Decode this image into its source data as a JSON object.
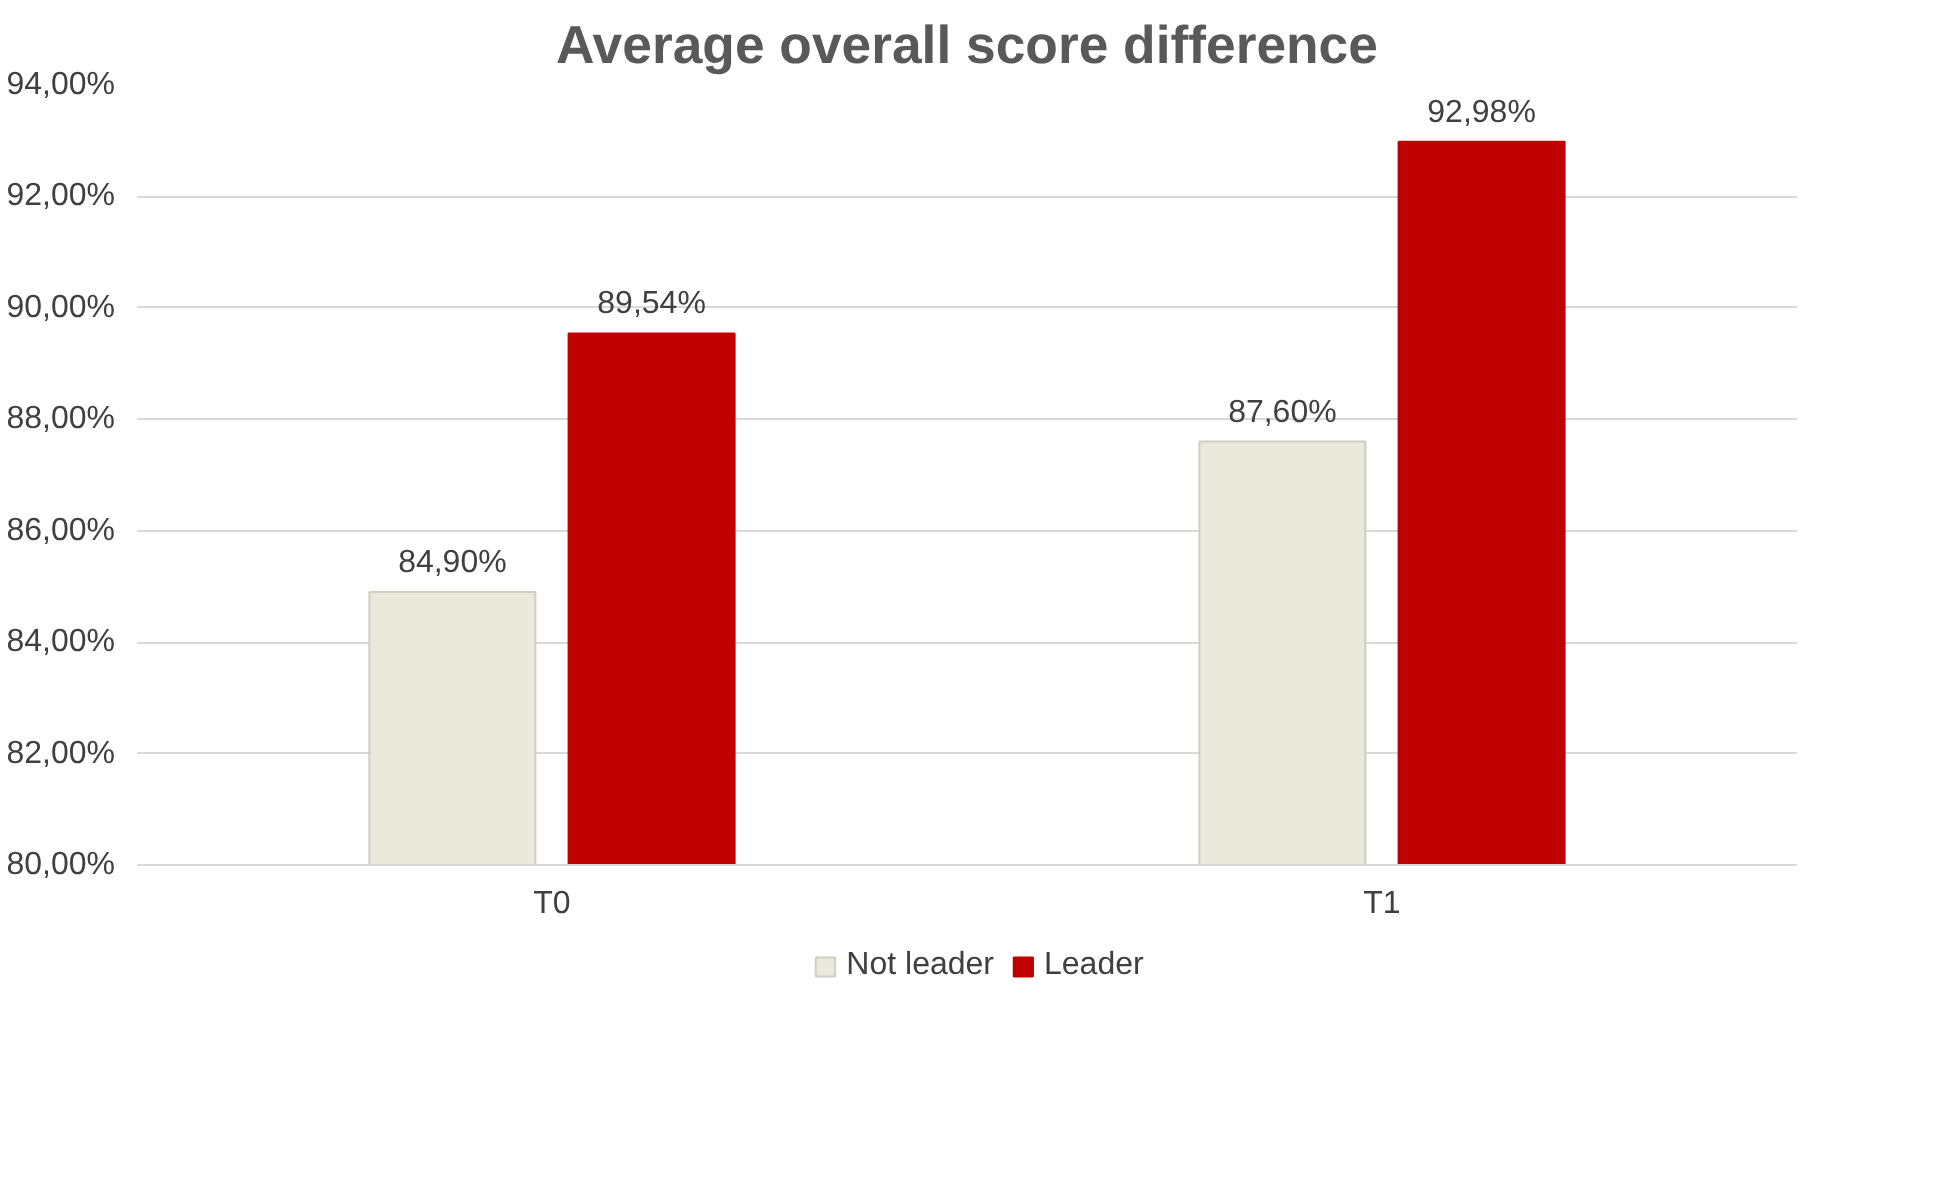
{
  "chart_data": {
    "type": "bar",
    "title": "Average overall score difference",
    "categories": [
      "T0",
      "T1"
    ],
    "series": [
      {
        "name": "Not leader",
        "color": "#ebe9dc",
        "values": [
          84.9,
          87.6
        ],
        "value_labels": [
          "84,90%",
          "87,60%"
        ]
      },
      {
        "name": "Leader",
        "color": "#c00000",
        "values": [
          89.54,
          92.98
        ],
        "value_labels": [
          "89,54%",
          "92,98%"
        ]
      }
    ],
    "ylim": [
      80,
      94
    ],
    "yticks": [
      {
        "value": 80,
        "label": "80,00%"
      },
      {
        "value": 82,
        "label": "82,00%"
      },
      {
        "value": 84,
        "label": "84,00%"
      },
      {
        "value": 86,
        "label": "86,00%"
      },
      {
        "value": 88,
        "label": "88,00%"
      },
      {
        "value": 90,
        "label": "90,00%"
      },
      {
        "value": 92,
        "label": "92,00%"
      },
      {
        "value": 94,
        "label": "94,00%"
      }
    ],
    "grid": "y",
    "legend": "bottom"
  }
}
